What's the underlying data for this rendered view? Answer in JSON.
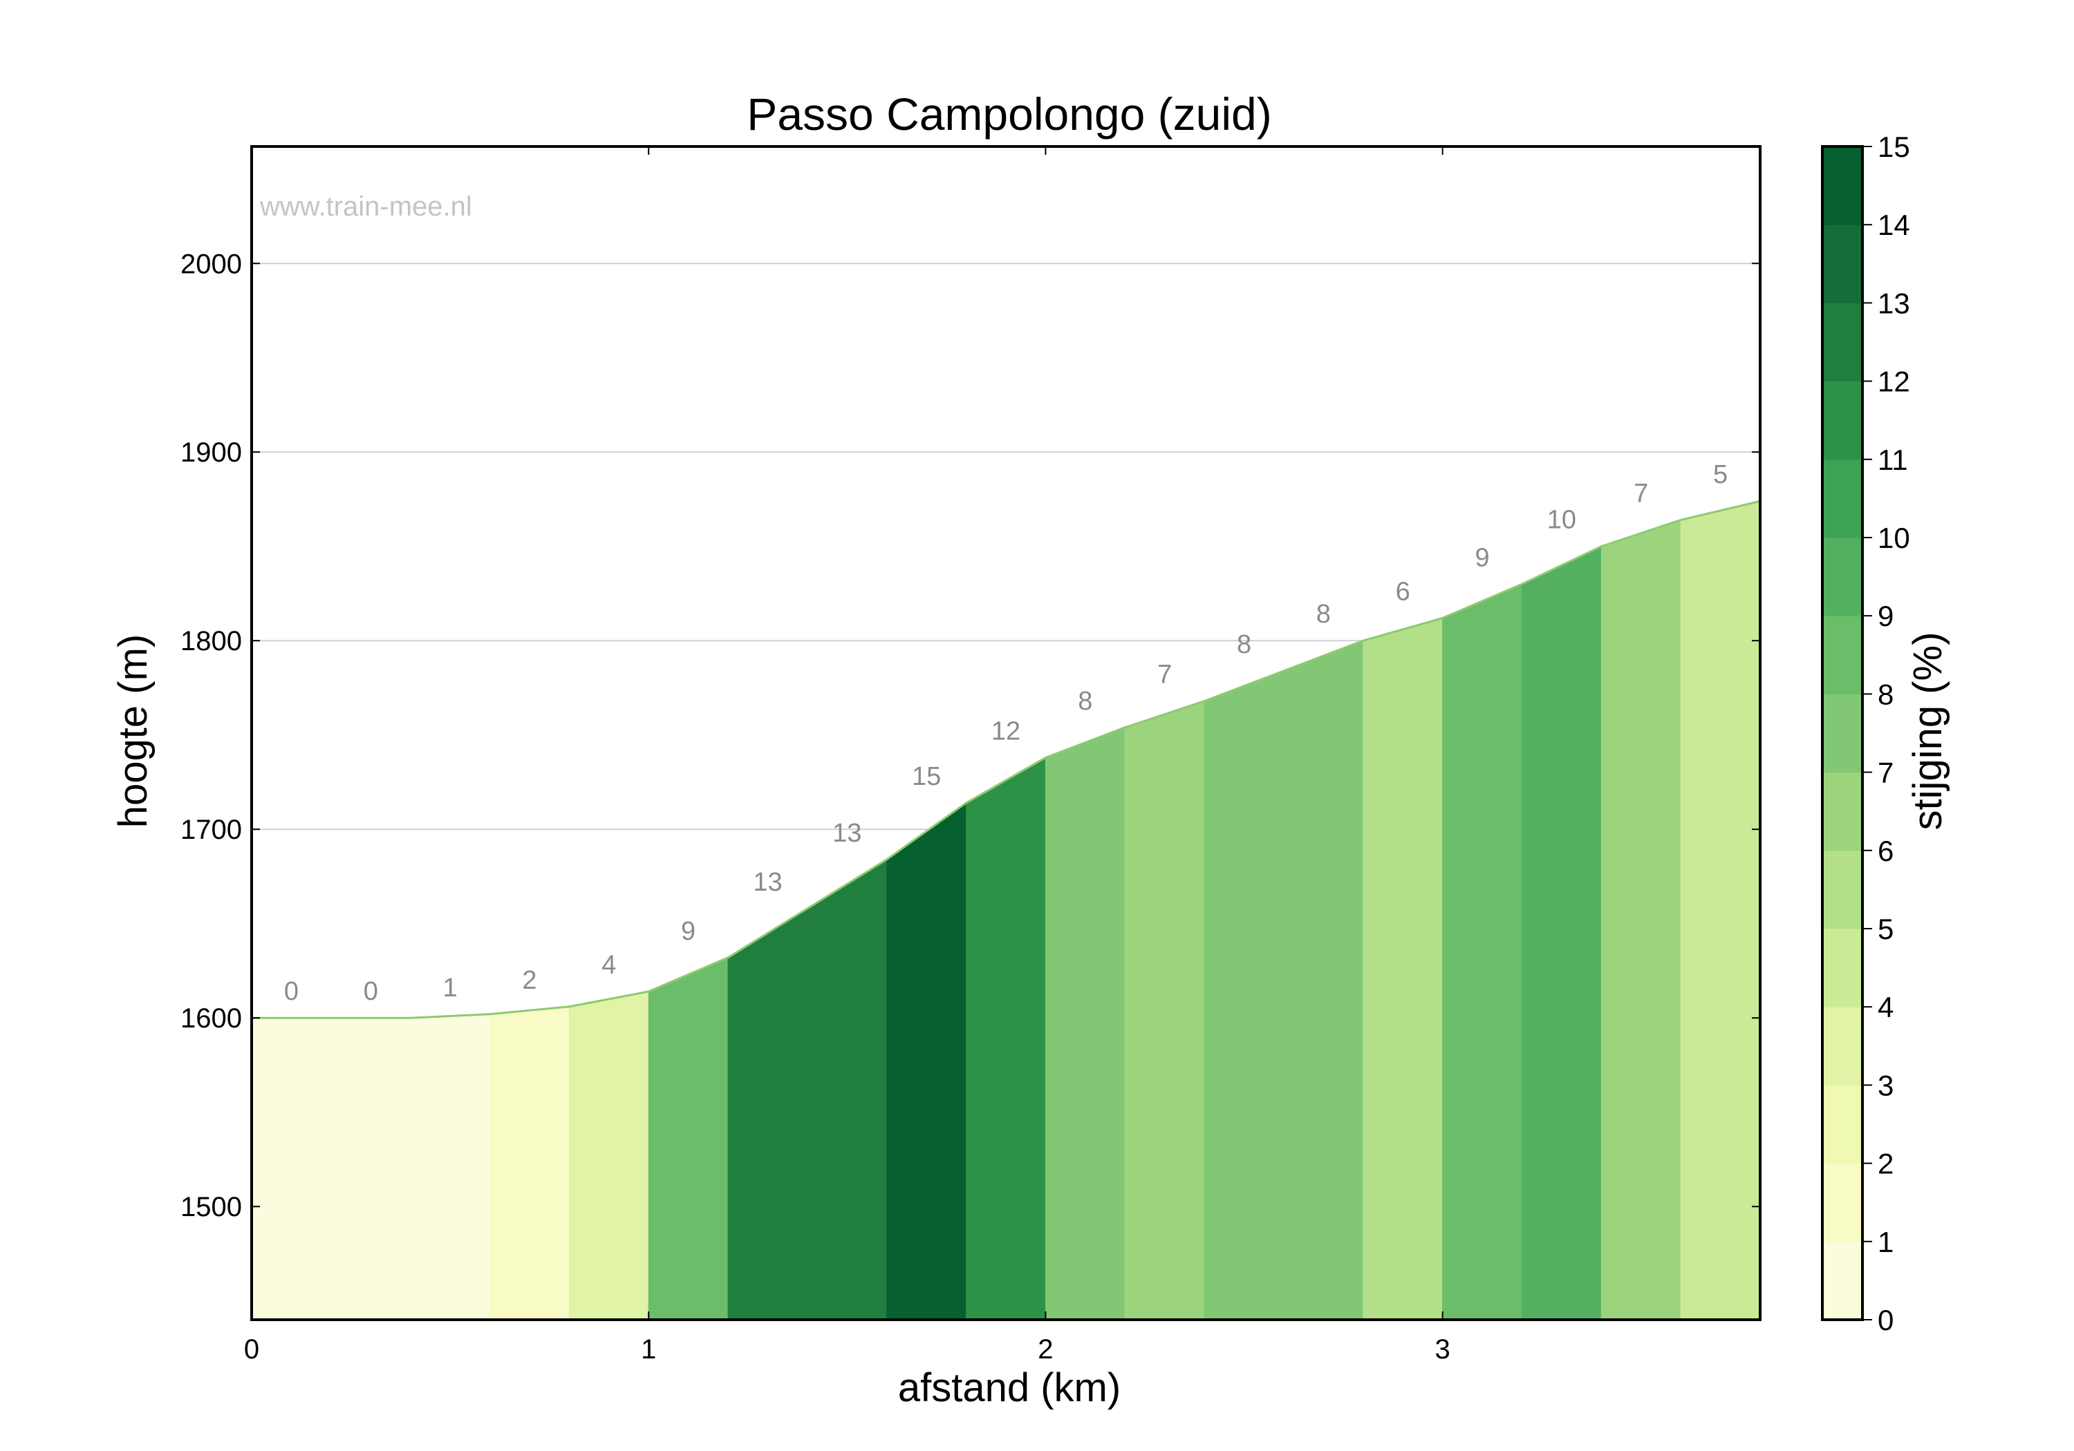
{
  "watermark": "www.train-mee.nl",
  "chart_data": {
    "type": "area",
    "title": "Passo Campolongo (zuid)",
    "xlabel": "afstand (km)",
    "ylabel": "hoogte (m)",
    "xlim": [
      0,
      3.8
    ],
    "ylim": [
      1440,
      2062
    ],
    "xticks": [
      0,
      1,
      2,
      3
    ],
    "yticks": [
      1500,
      1600,
      1700,
      1800,
      1900,
      2000
    ],
    "grid": "horizontal",
    "profile": {
      "x": [
        0,
        0.2,
        0.4,
        0.6,
        0.8,
        1.0,
        1.2,
        1.4,
        1.6,
        1.8,
        2.0,
        2.2,
        2.4,
        2.6,
        2.8,
        3.0,
        3.2,
        3.4,
        3.6,
        3.8
      ],
      "elevation": [
        1600,
        1600,
        1600,
        1602,
        1606,
        1614,
        1632,
        1658,
        1684,
        1714,
        1738,
        1754,
        1768,
        1784,
        1800,
        1812,
        1830,
        1850,
        1864,
        1874
      ]
    },
    "segments": {
      "grade_percent": [
        0,
        0,
        1,
        2,
        4,
        9,
        13,
        13,
        15,
        12,
        8,
        7,
        8,
        8,
        6,
        9,
        10,
        7,
        5
      ],
      "labels": [
        "0",
        "0",
        "1",
        "2",
        "4",
        "9",
        "13",
        "13",
        "15",
        "12",
        "8",
        "7",
        "8",
        "8",
        "6",
        "9",
        "10",
        "7",
        "5"
      ]
    },
    "colorbar": {
      "label": "stijging (%)",
      "min": 0,
      "max": 15,
      "ticks": [
        "0",
        "1",
        "2",
        "3",
        "4",
        "5",
        "6",
        "7",
        "8",
        "9",
        "10",
        "11",
        "12",
        "13",
        "14",
        "15"
      ],
      "colors": [
        "#fbfbdd",
        "#f8fbc6",
        "#eff9b2",
        "#e0f3a6",
        "#cbea95",
        "#b4df89",
        "#9cd47e",
        "#82c874",
        "#6bbd6a",
        "#52b060",
        "#3da352",
        "#2d9147",
        "#207f3e",
        "#136f37",
        "#06602f"
      ]
    }
  }
}
